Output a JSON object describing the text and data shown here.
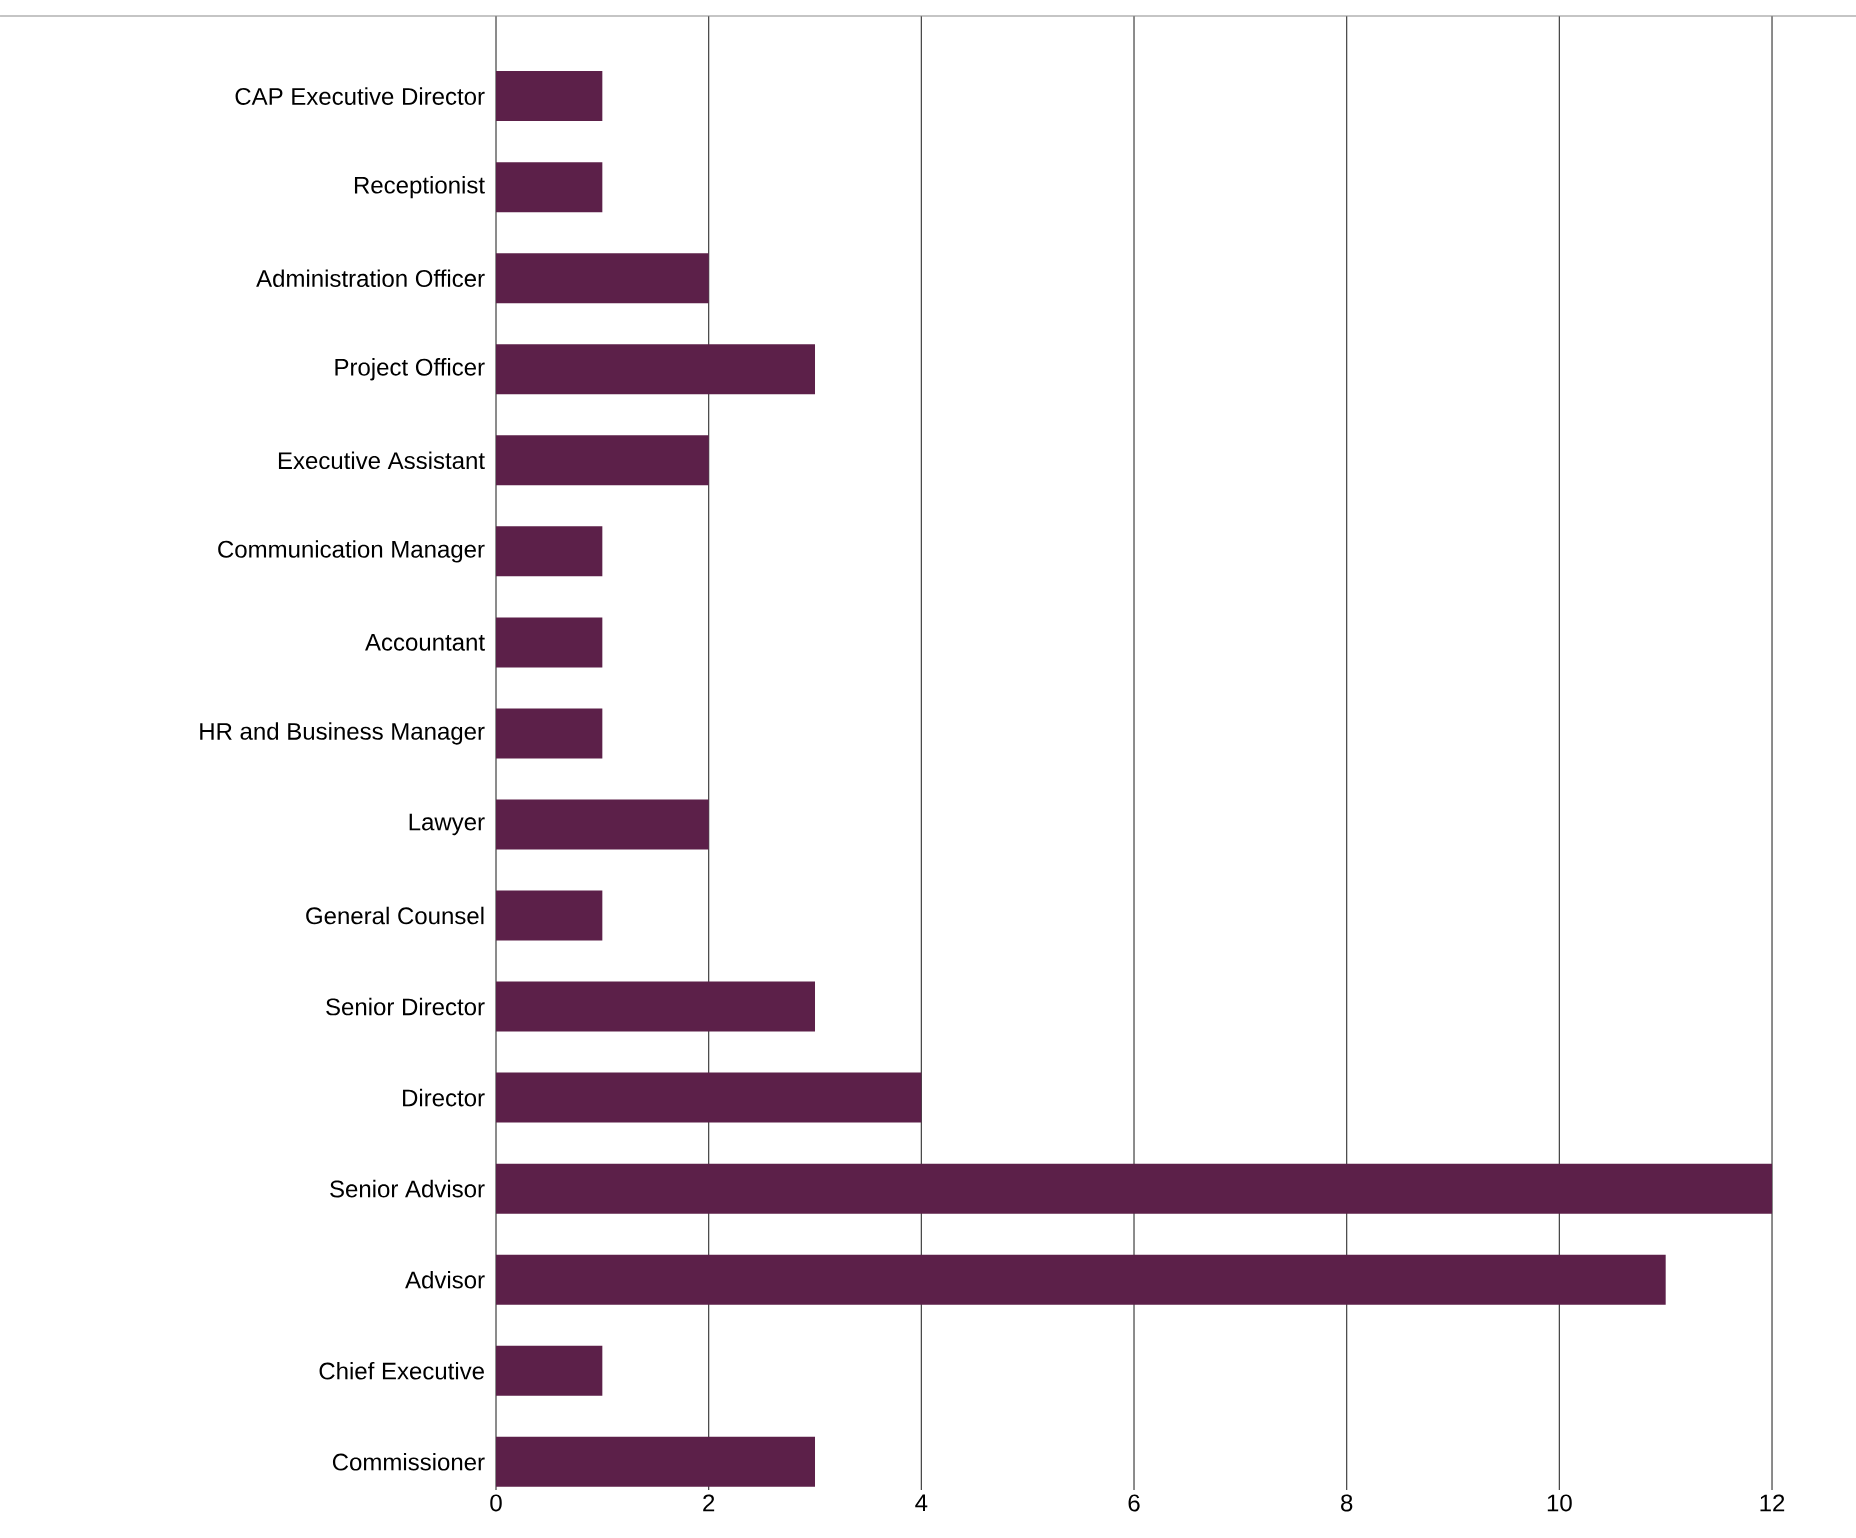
{
  "chart_data": {
    "type": "bar",
    "orientation": "horizontal",
    "categories": [
      "CAP Executive Director",
      "Receptionist",
      "Administration Officer",
      "Project Officer",
      "Executive Assistant",
      "Communication Manager",
      "Accountant",
      "HR and Business Manager",
      "Lawyer",
      "General Counsel",
      "Senior Director",
      "Director",
      "Senior Advisor",
      "Advisor",
      "Chief Executive",
      "Commissioner"
    ],
    "values": [
      1,
      1,
      2,
      3,
      2,
      1,
      1,
      1,
      2,
      1,
      3,
      4,
      12,
      11,
      1,
      3
    ],
    "color": "#5c2049",
    "xlim": [
      0,
      12
    ],
    "xticks": [
      0,
      2,
      4,
      6,
      8,
      10,
      12
    ],
    "grid": "x"
  }
}
